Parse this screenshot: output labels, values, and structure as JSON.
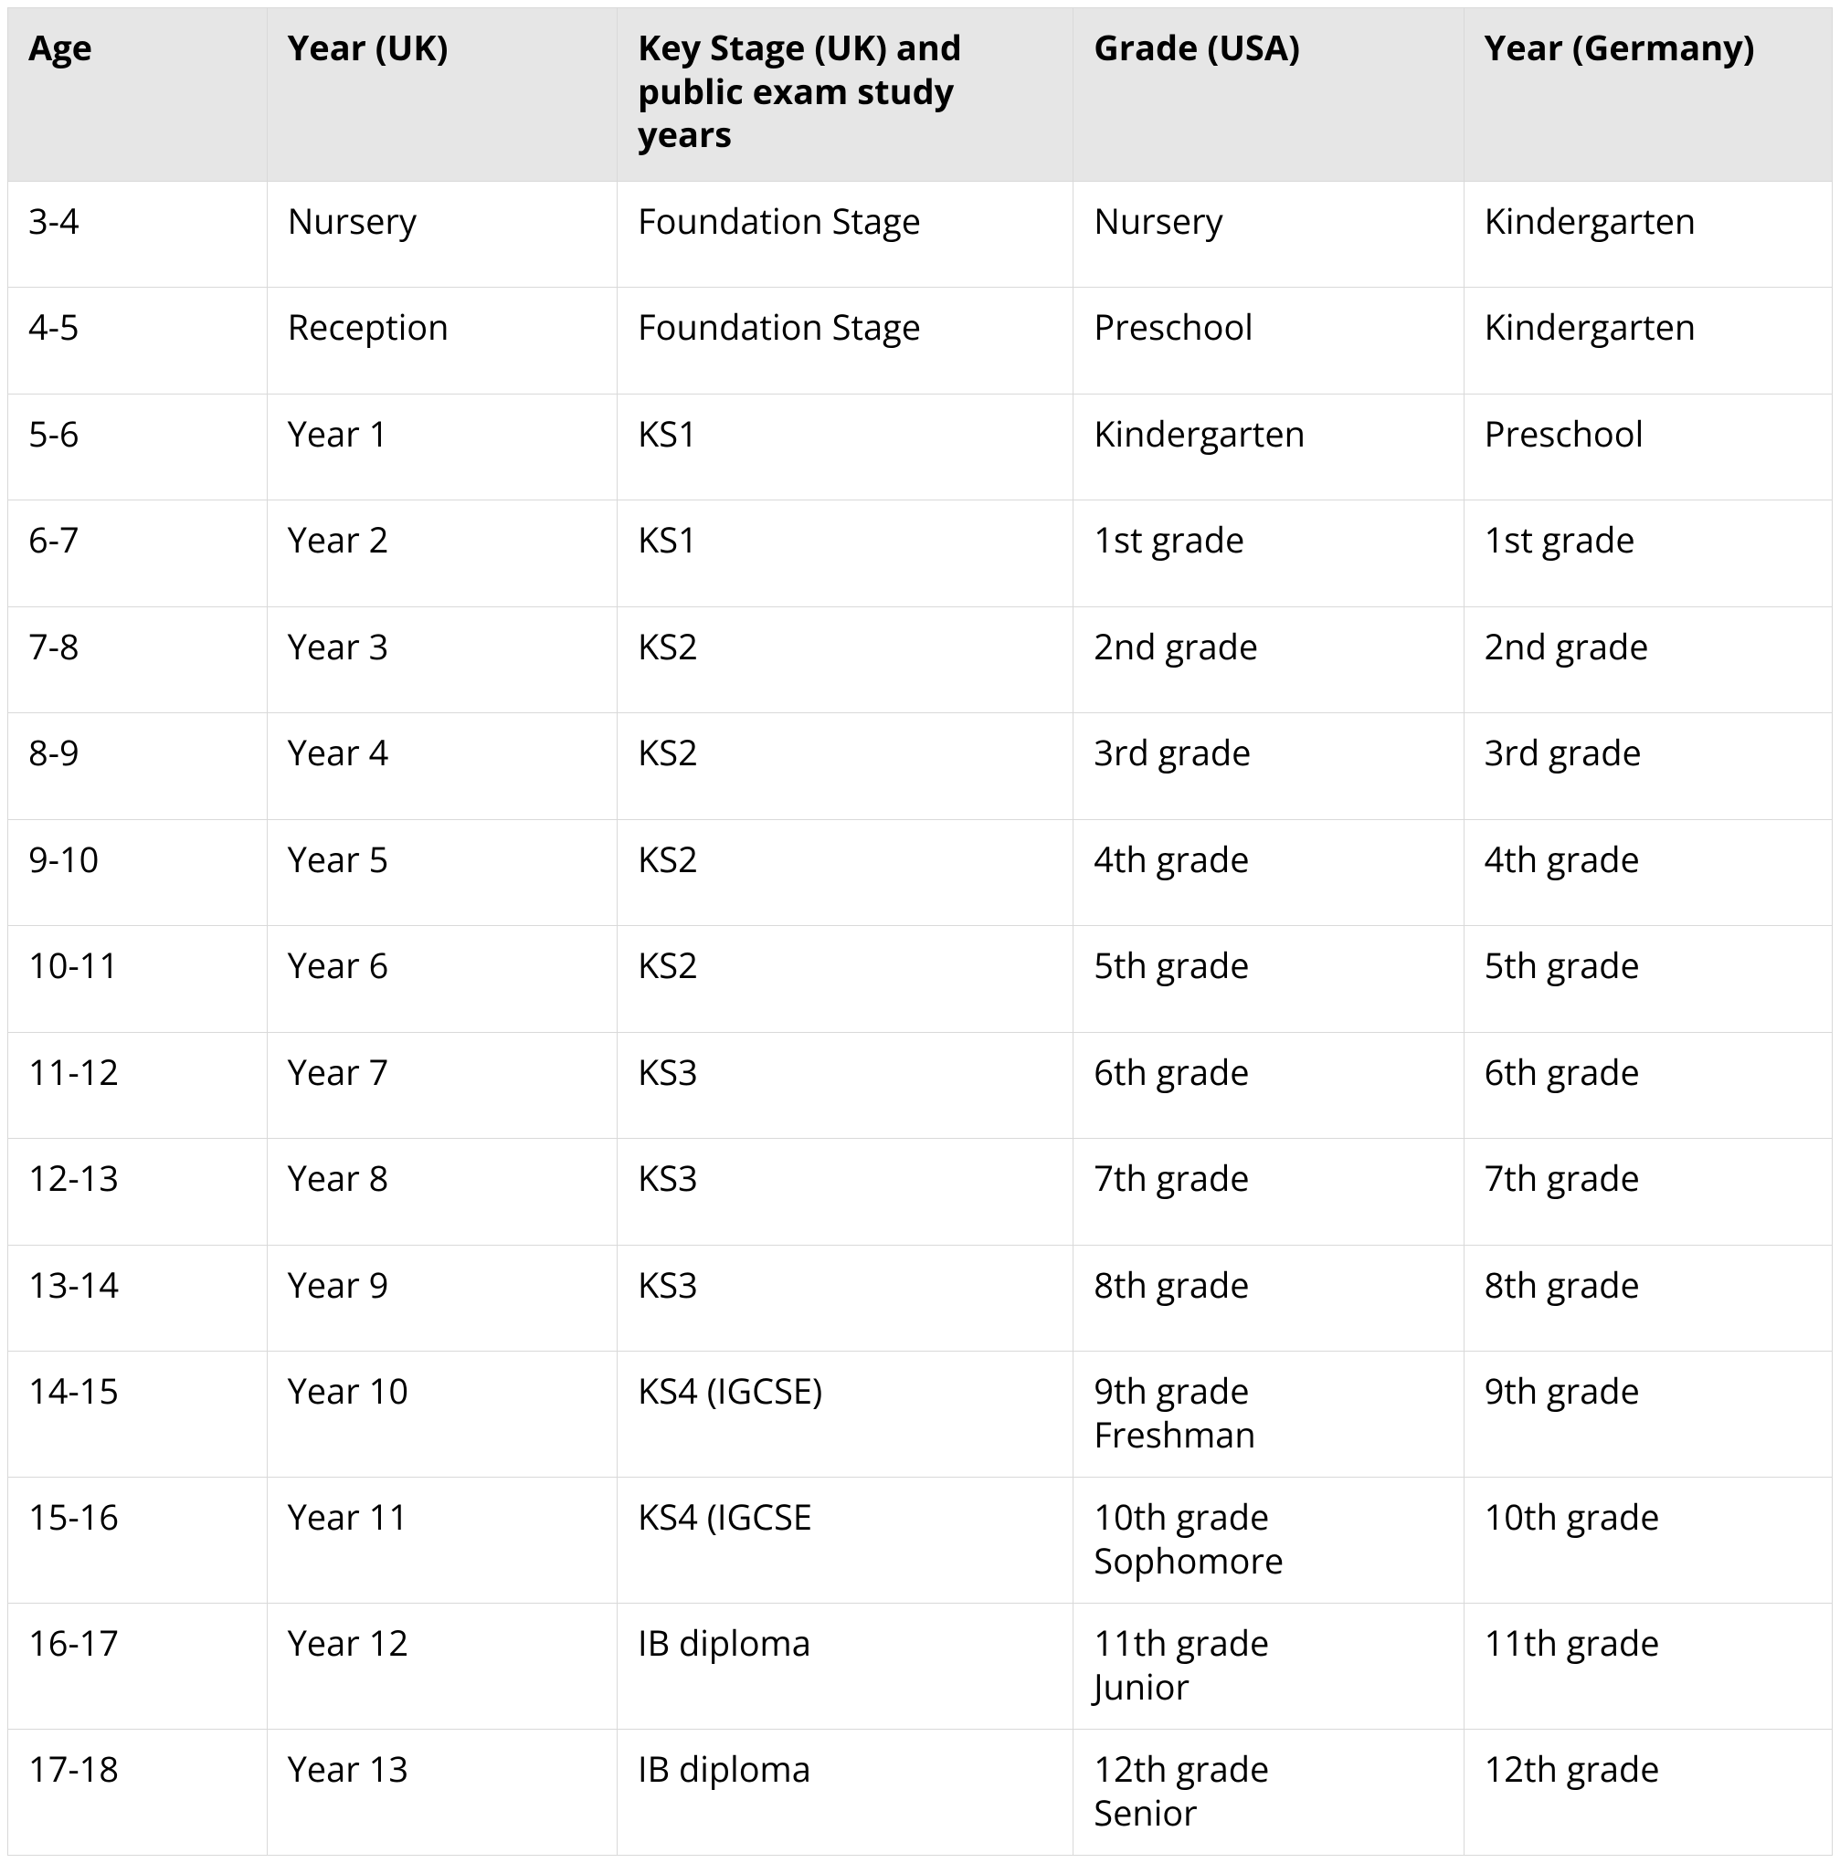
{
  "table": {
    "type": "table",
    "header_background": "#e6e6e6",
    "border_color": "#d9d9d9",
    "text_color": "#000000",
    "font_size_pt": 29,
    "column_widths_pct": [
      14.2,
      19.2,
      25.0,
      21.4,
      20.2
    ],
    "columns": [
      "Age",
      "Year (UK)",
      "Key Stage (UK) and public exam study years",
      "Grade (USA)",
      "Year (Germany)"
    ],
    "rows": [
      {
        "cells": [
          "3-4",
          "Nursery",
          "Foundation Stage",
          "Nursery",
          "Kindergarten"
        ],
        "tight": false
      },
      {
        "cells": [
          "4-5",
          "Reception",
          "Foundation Stage",
          "Preschool",
          "Kindergarten"
        ],
        "tight": false
      },
      {
        "cells": [
          "5-6",
          "Year 1",
          "KS1",
          "Kindergarten",
          "Preschool"
        ],
        "tight": false
      },
      {
        "cells": [
          "6-7",
          "Year 2",
          "KS1",
          "1st grade",
          "1st grade"
        ],
        "tight": false
      },
      {
        "cells": [
          "7-8",
          "Year 3",
          "KS2",
          "2nd grade",
          "2nd grade"
        ],
        "tight": false
      },
      {
        "cells": [
          "8-9",
          "Year 4",
          "KS2",
          "3rd grade",
          "3rd grade"
        ],
        "tight": false
      },
      {
        "cells": [
          "9-10",
          "Year 5",
          "KS2",
          "4th grade",
          "4th grade"
        ],
        "tight": false
      },
      {
        "cells": [
          "10-11",
          "Year 6",
          "KS2",
          "5th grade",
          "5th grade"
        ],
        "tight": false
      },
      {
        "cells": [
          "11-12",
          "Year 7",
          "KS3",
          "6th grade",
          "6th grade"
        ],
        "tight": false
      },
      {
        "cells": [
          "12-13",
          "Year 8",
          "KS3",
          "7th grade",
          "7th grade"
        ],
        "tight": false
      },
      {
        "cells": [
          "13-14",
          "Year 9",
          "KS3",
          "8th grade",
          "8th grade"
        ],
        "tight": false
      },
      {
        "cells": [
          "14-15",
          "Year 10",
          "KS4 (IGCSE)",
          "9th grade\nFreshman",
          "9th grade"
        ],
        "tight": true
      },
      {
        "cells": [
          "15-16",
          "Year 11",
          "KS4 (IGCSE",
          "10th grade\nSophomore",
          "10th grade"
        ],
        "tight": true
      },
      {
        "cells": [
          "16-17",
          "Year 12",
          "IB diploma",
          "11th grade\nJunior",
          "11th grade"
        ],
        "tight": true
      },
      {
        "cells": [
          "17-18",
          "Year 13",
          "IB diploma",
          "12th grade\nSenior",
          "12th grade"
        ],
        "tight": true
      }
    ]
  }
}
